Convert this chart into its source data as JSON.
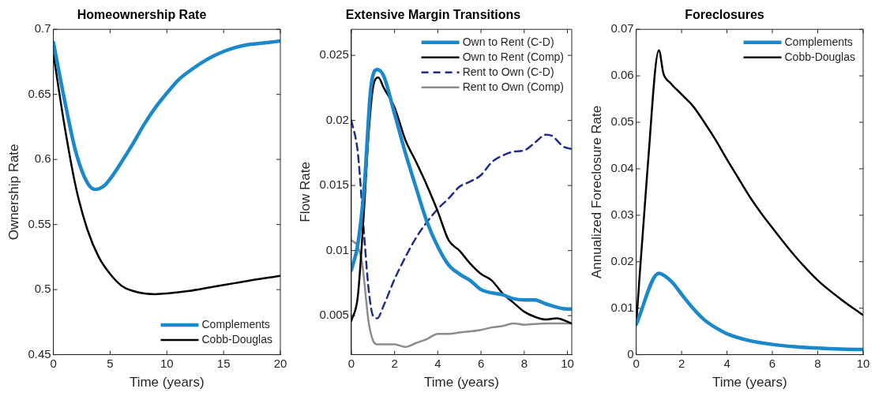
{
  "chart_data": [
    {
      "type": "line",
      "title": "Homeownership Rate",
      "xlabel": "Time (years)",
      "ylabel": "Ownership Rate",
      "xlim": [
        0,
        20
      ],
      "xticks": [
        0,
        5,
        10,
        15,
        20
      ],
      "ylim": [
        0.45,
        0.7
      ],
      "yticks": [
        0.45,
        0.5,
        0.55,
        0.6,
        0.65,
        0.7
      ],
      "grid": false,
      "legend": "bottom right",
      "marker": "none",
      "series": [
        {
          "name": "Complements",
          "color": "#1a88c9",
          "x": [
            0,
            1,
            2,
            3,
            3.7,
            4.5,
            5,
            6,
            7,
            8,
            9,
            10,
            11,
            12,
            13,
            14,
            15,
            16,
            17,
            18,
            19,
            20
          ],
          "values": [
            0.69,
            0.645,
            0.605,
            0.582,
            0.577,
            0.58,
            0.585,
            0.598,
            0.612,
            0.627,
            0.64,
            0.651,
            0.661,
            0.668,
            0.674,
            0.679,
            0.683,
            0.686,
            0.688,
            0.689,
            0.69,
            0.691
          ]
        },
        {
          "name": "Cobb-Douglas",
          "color": "#000000",
          "x": [
            0,
            1,
            2,
            3,
            4,
            5,
            6,
            7,
            8,
            9,
            10,
            12,
            14,
            16,
            18,
            20
          ],
          "values": [
            0.681,
            0.625,
            0.578,
            0.546,
            0.525,
            0.512,
            0.503,
            0.499,
            0.497,
            0.4965,
            0.497,
            0.499,
            0.502,
            0.505,
            0.508,
            0.5105
          ]
        }
      ]
    },
    {
      "type": "line",
      "title": "Extensive Margin Transitions",
      "xlabel": "Time (years)",
      "ylabel": "Flow Rate",
      "xlim": [
        0,
        10.2
      ],
      "xticks": [
        0,
        2,
        4,
        6,
        8,
        10
      ],
      "ylim": [
        0.002,
        0.027
      ],
      "yticks": [
        0.005,
        0.01,
        0.015,
        0.02,
        0.025
      ],
      "grid": false,
      "legend": "top right",
      "marker": "none",
      "series": [
        {
          "name": "Own to Rent (C-D)",
          "color": "#1a88c9",
          "x": [
            0,
            0.3,
            0.6,
            0.9,
            1.2,
            1.5,
            2,
            2.5,
            3,
            3.5,
            4,
            4.5,
            5,
            5.5,
            6,
            7,
            7.5,
            8,
            8.5,
            9,
            10,
            10.2
          ],
          "values": [
            0.0085,
            0.0105,
            0.015,
            0.0225,
            0.0239,
            0.0234,
            0.0205,
            0.0175,
            0.0148,
            0.0122,
            0.0103,
            0.0089,
            0.0082,
            0.0077,
            0.007,
            0.0066,
            0.0063,
            0.0062,
            0.0062,
            0.0059,
            0.0055,
            0.0055
          ]
        },
        {
          "name": "Own to Rent (Comp)",
          "color": "#000000",
          "x": [
            0,
            0.3,
            0.6,
            0.8,
            1,
            1.25,
            1.5,
            2,
            2.5,
            3,
            3.5,
            4,
            4.5,
            5,
            5.5,
            6,
            6.5,
            7,
            7.5,
            8,
            8.5,
            9,
            9.5,
            10.2
          ],
          "values": [
            0.0046,
            0.0065,
            0.0135,
            0.019,
            0.0225,
            0.0233,
            0.0225,
            0.021,
            0.0185,
            0.0168,
            0.015,
            0.013,
            0.0108,
            0.01,
            0.009,
            0.0082,
            0.0077,
            0.0067,
            0.006,
            0.0053,
            0.0049,
            0.0047,
            0.0048,
            0.0044
          ]
        },
        {
          "name": "Rent to Own (C-D)",
          "color": "#1f2d8a",
          "line_style": "dashed",
          "x": [
            0,
            0.3,
            0.6,
            0.8,
            1,
            1.2,
            1.5,
            2,
            2.5,
            3,
            3.5,
            4,
            4.5,
            5,
            5.5,
            6,
            6.5,
            7,
            7.5,
            8,
            8.5,
            9,
            9.3,
            9.8,
            10.2
          ],
          "values": [
            0.02,
            0.0175,
            0.011,
            0.007,
            0.005,
            0.0048,
            0.0058,
            0.0078,
            0.0095,
            0.011,
            0.0122,
            0.0132,
            0.014,
            0.0149,
            0.0153,
            0.0158,
            0.0168,
            0.0173,
            0.0176,
            0.0177,
            0.0183,
            0.0189,
            0.0188,
            0.018,
            0.0178
          ]
        },
        {
          "name": "Rent to Own (Comp)",
          "color": "#8c8c8c",
          "x": [
            0,
            0.3,
            0.5,
            0.8,
            1,
            1.2,
            1.5,
            2,
            2.5,
            3,
            3.5,
            4,
            4.5,
            5,
            6,
            6.5,
            7,
            7.5,
            8,
            9,
            10.2
          ],
          "values": [
            0.0108,
            0.0103,
            0.009,
            0.0045,
            0.0031,
            0.0028,
            0.0028,
            0.0028,
            0.0026,
            0.0029,
            0.0032,
            0.0036,
            0.0036,
            0.0037,
            0.0039,
            0.0041,
            0.0042,
            0.0044,
            0.0043,
            0.0044,
            0.0044
          ]
        }
      ]
    },
    {
      "type": "line",
      "title": "Foreclosures",
      "xlabel": "Time (years)",
      "ylabel": "Annualized Foreclosure Rate",
      "xlim": [
        0,
        10
      ],
      "xticks": [
        0,
        2,
        4,
        6,
        8,
        10
      ],
      "ylim": [
        0,
        0.07
      ],
      "yticks": [
        0,
        0.01,
        0.02,
        0.03,
        0.04,
        0.05,
        0.06,
        0.07
      ],
      "grid": false,
      "legend": "top right",
      "marker": "none",
      "series": [
        {
          "name": "Complements",
          "color": "#1a88c9",
          "x": [
            0,
            1,
            1.3,
            1.6,
            2,
            2.5,
            3,
            3.5,
            4,
            5,
            6,
            7,
            8,
            9,
            10
          ],
          "values": [
            0.0065,
            0.0175,
            0.0168,
            0.0155,
            0.013,
            0.01,
            0.0075,
            0.0058,
            0.0045,
            0.003,
            0.0022,
            0.0017,
            0.0014,
            0.0012,
            0.0011
          ]
        },
        {
          "name": "Cobb-Douglas",
          "color": "#000000",
          "x": [
            0,
            0.5,
            1,
            1.2,
            1.5,
            2,
            2.5,
            3,
            3.5,
            4,
            4.5,
            5,
            5.5,
            6,
            7,
            8,
            9,
            10
          ],
          "values": [
            0.0065,
            0.04,
            0.0655,
            0.0605,
            0.0585,
            0.056,
            0.0535,
            0.05,
            0.0462,
            0.042,
            0.038,
            0.034,
            0.0305,
            0.0273,
            0.0212,
            0.016,
            0.012,
            0.0085
          ]
        }
      ]
    }
  ]
}
